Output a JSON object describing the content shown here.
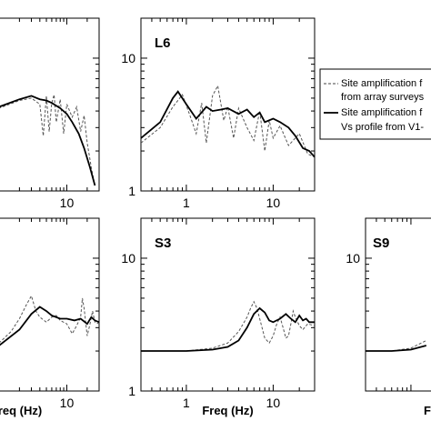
{
  "chart_data": [
    {
      "type": "line",
      "panel": "",
      "xscale": "log",
      "yscale": "log",
      "xlim": [
        0.3,
        30
      ],
      "ylim": [
        1,
        20
      ],
      "x_ticks": [
        {
          "value": 10,
          "label": "10"
        }
      ],
      "y_ticks": [],
      "xlabel": "",
      "series": [
        {
          "name": "dashed",
          "style": "dashed",
          "x": [
            0.3,
            1,
            2,
            3,
            4,
            4.5,
            5,
            5.5,
            6,
            6.5,
            7,
            8,
            9,
            10,
            12,
            14,
            16,
            18,
            20,
            23,
            26
          ],
          "y": [
            3.5,
            4.2,
            4.8,
            5.0,
            4.5,
            2.6,
            5.2,
            2.8,
            4.6,
            5.3,
            3.3,
            4.9,
            2.7,
            4.5,
            3.6,
            4.3,
            2.8,
            3.7,
            2.3,
            1.5,
            1.1
          ]
        },
        {
          "name": "solid",
          "style": "solid",
          "x": [
            0.3,
            1,
            2,
            3,
            4,
            5,
            6,
            8,
            10,
            12,
            15,
            18,
            22,
            26
          ],
          "y": [
            3.8,
            4.3,
            4.9,
            5.2,
            4.9,
            4.8,
            4.6,
            4.2,
            3.8,
            3.3,
            2.7,
            2.1,
            1.5,
            1.1
          ]
        }
      ]
    },
    {
      "type": "line",
      "panel": "L6",
      "xscale": "log",
      "yscale": "log",
      "xlim": [
        0.3,
        30
      ],
      "ylim": [
        1,
        20
      ],
      "x_ticks": [
        {
          "value": 1,
          "label": "1"
        },
        {
          "value": 10,
          "label": "10"
        }
      ],
      "y_ticks": [
        {
          "value": 1,
          "label": "1"
        },
        {
          "value": 10,
          "label": "10"
        }
      ],
      "xlabel": "",
      "series": [
        {
          "name": "dashed",
          "style": "dashed",
          "x": [
            0.3,
            0.5,
            0.7,
            0.9,
            1.1,
            1.3,
            1.5,
            1.7,
            2.0,
            2.3,
            2.7,
            3.0,
            3.5,
            4,
            5,
            6,
            7,
            8,
            9,
            10,
            12,
            15,
            20,
            25,
            30
          ],
          "y": [
            2.3,
            3.0,
            4.3,
            5.3,
            3.7,
            2.7,
            4.6,
            2.3,
            5.2,
            6.2,
            3.4,
            4.3,
            2.5,
            4.2,
            3.0,
            2.4,
            4.0,
            2.0,
            3.4,
            2.5,
            3.1,
            2.2,
            2.7,
            1.9,
            1.8
          ]
        },
        {
          "name": "solid",
          "style": "solid",
          "x": [
            0.3,
            0.5,
            0.7,
            0.8,
            1.0,
            1.3,
            1.7,
            2.0,
            2.5,
            3,
            4,
            5,
            6,
            7,
            8,
            10,
            12,
            15,
            18,
            22,
            26,
            30
          ],
          "y": [
            2.5,
            3.3,
            5.0,
            5.6,
            4.5,
            3.5,
            4.3,
            4.0,
            4.1,
            4.2,
            3.8,
            4.1,
            3.6,
            3.9,
            3.3,
            3.5,
            3.3,
            3.0,
            2.6,
            2.1,
            2.0,
            1.8
          ]
        }
      ]
    },
    {
      "type": "line",
      "panel": "",
      "xscale": "log",
      "yscale": "log",
      "xlim": [
        0.3,
        30
      ],
      "ylim": [
        1,
        20
      ],
      "x_ticks": [
        {
          "value": 10,
          "label": "10"
        }
      ],
      "y_ticks": [],
      "xlabel": "req (Hz)",
      "series": [
        {
          "name": "dashed",
          "style": "dashed",
          "x": [
            0.3,
            0.6,
            1,
            1.5,
            2,
            2.5,
            3,
            3.5,
            4,
            5,
            6,
            7,
            8,
            10,
            12,
            14,
            16,
            17,
            18,
            20,
            22,
            24,
            26,
            30
          ],
          "y": [
            2.0,
            2.1,
            2.3,
            2.8,
            3.5,
            4.4,
            5.2,
            4.0,
            3.6,
            3.3,
            3.6,
            3.7,
            3.4,
            3.2,
            2.7,
            3.1,
            3.6,
            5.0,
            4.2,
            2.6,
            3.2,
            4.0,
            3.3,
            3.2
          ]
        },
        {
          "name": "solid",
          "style": "solid",
          "x": [
            0.3,
            1,
            2,
            3,
            4,
            5,
            6,
            8,
            10,
            13,
            16,
            20,
            23,
            26,
            30
          ],
          "y": [
            2.0,
            2.2,
            2.9,
            3.8,
            4.3,
            4.0,
            3.7,
            3.5,
            3.5,
            3.4,
            3.5,
            3.2,
            3.6,
            3.4,
            3.3
          ]
        }
      ]
    },
    {
      "type": "line",
      "panel": "S3",
      "xscale": "log",
      "yscale": "log",
      "xlim": [
        0.3,
        30
      ],
      "ylim": [
        1,
        20
      ],
      "x_ticks": [
        {
          "value": 1,
          "label": "1"
        },
        {
          "value": 10,
          "label": "10"
        }
      ],
      "y_ticks": [
        {
          "value": 1,
          "label": "1"
        },
        {
          "value": 10,
          "label": "10"
        }
      ],
      "xlabel": "Freq (Hz)",
      "series": [
        {
          "name": "dashed",
          "style": "dashed",
          "x": [
            0.3,
            1,
            2,
            3,
            4,
            5,
            5.5,
            6,
            6.5,
            7,
            8,
            9,
            10,
            11,
            12,
            13,
            14,
            15,
            16,
            17,
            18,
            20,
            22,
            25,
            30
          ],
          "y": [
            2.0,
            2.0,
            2.1,
            2.3,
            2.8,
            3.6,
            4.2,
            4.7,
            4.2,
            3.5,
            2.5,
            2.3,
            2.6,
            3.2,
            3.6,
            3.0,
            2.5,
            2.6,
            3.2,
            4.0,
            3.6,
            3.1,
            2.9,
            3.2,
            3.1
          ]
        },
        {
          "name": "solid",
          "style": "solid",
          "x": [
            0.3,
            1,
            2,
            3,
            4,
            5,
            6,
            7,
            8,
            9,
            10,
            12,
            14,
            16,
            18,
            20,
            22,
            24,
            26,
            30
          ],
          "y": [
            2.0,
            2.0,
            2.05,
            2.15,
            2.4,
            3.0,
            3.8,
            4.2,
            3.9,
            3.4,
            3.3,
            3.5,
            3.8,
            3.5,
            3.3,
            3.7,
            3.4,
            3.5,
            3.3,
            3.3
          ]
        }
      ]
    },
    {
      "type": "line",
      "panel": "S9",
      "xscale": "log",
      "yscale": "log",
      "xlim": [
        0.3,
        30
      ],
      "ylim": [
        1,
        20
      ],
      "x_ticks": [],
      "y_ticks": [
        {
          "value": 10,
          "label": "10"
        }
      ],
      "xlabel": "F",
      "series": [
        {
          "name": "dashed",
          "style": "dashed",
          "x": [
            0.3,
            0.6,
            1,
            1.5
          ],
          "y": [
            2.0,
            2.0,
            2.1,
            2.4
          ]
        },
        {
          "name": "solid",
          "style": "solid",
          "x": [
            0.3,
            0.6,
            1,
            1.5
          ],
          "y": [
            2.0,
            2.0,
            2.05,
            2.2
          ]
        }
      ]
    }
  ],
  "legend": {
    "entries": [
      {
        "style": "dashed",
        "line1": "Site amplification f",
        "line2": "from array surveys"
      },
      {
        "style": "solid",
        "line1": "Site amplification f",
        "line2": "Vs profile from V1-"
      }
    ]
  }
}
